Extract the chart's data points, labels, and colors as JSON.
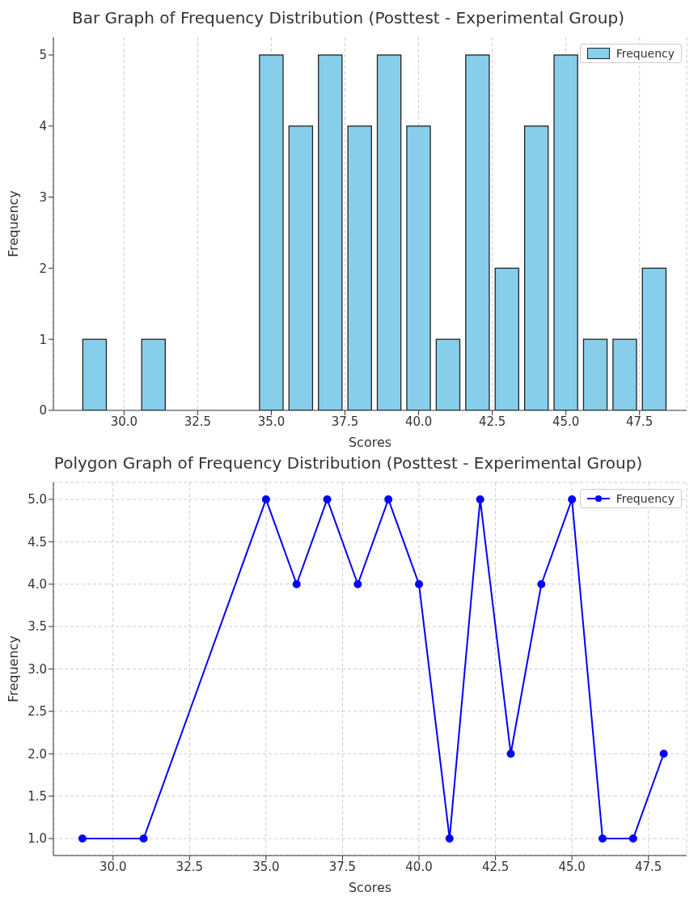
{
  "chart_data": [
    {
      "type": "bar",
      "title": "Bar Graph of Frequency Distribution (Posttest - Experimental Group)",
      "xlabel": "Scores",
      "ylabel": "Frequency",
      "x": [
        29,
        31,
        35,
        36,
        37,
        38,
        39,
        40,
        41,
        42,
        43,
        44,
        45,
        46,
        47,
        48
      ],
      "series": [
        {
          "name": "Frequency",
          "color": "#87ceeb",
          "values": [
            1,
            1,
            5,
            4,
            5,
            4,
            5,
            4,
            1,
            5,
            2,
            4,
            5,
            1,
            1,
            2
          ]
        }
      ],
      "xlim": [
        27.6,
        49.1
      ],
      "xticks": [
        {
          "value": 30,
          "label": "30.0"
        },
        {
          "value": 32.5,
          "label": "32.5"
        },
        {
          "value": 35,
          "label": "35.0"
        },
        {
          "value": 37.5,
          "label": "37.5"
        },
        {
          "value": 40,
          "label": "40.0"
        },
        {
          "value": 42.5,
          "label": "42.5"
        },
        {
          "value": 45,
          "label": "45.0"
        },
        {
          "value": 47.5,
          "label": "47.5"
        }
      ],
      "ylim": [
        0,
        5.25
      ],
      "yticks": [
        0,
        1,
        2,
        3,
        4,
        5
      ],
      "grid": "x",
      "legend": "top right"
    },
    {
      "type": "line",
      "title": "Polygon Graph of Frequency Distribution (Posttest - Experimental Group)",
      "xlabel": "Scores",
      "ylabel": "Frequency",
      "x": [
        29,
        31,
        35,
        36,
        37,
        38,
        39,
        40,
        41,
        42,
        43,
        44,
        45,
        46,
        47,
        48
      ],
      "series": [
        {
          "name": "Frequency",
          "color": "#0000ff",
          "values": [
            1,
            1,
            5,
            4,
            5,
            4,
            5,
            4,
            1,
            5,
            2,
            4,
            5,
            1,
            1,
            2
          ]
        }
      ],
      "xlim": [
        28.05,
        48.75
      ],
      "xticks": [
        {
          "value": 30,
          "label": "30.0"
        },
        {
          "value": 32.5,
          "label": "32.5"
        },
        {
          "value": 35,
          "label": "35.0"
        },
        {
          "value": 37.5,
          "label": "37.5"
        },
        {
          "value": 40,
          "label": "40.0"
        },
        {
          "value": 42.5,
          "label": "42.5"
        },
        {
          "value": 45,
          "label": "45.0"
        },
        {
          "value": 47.5,
          "label": "47.5"
        }
      ],
      "ylim": [
        0.8,
        5.2
      ],
      "yticks": [
        {
          "value": 1,
          "label": "1.0"
        },
        {
          "value": 1.5,
          "label": "1.5"
        },
        {
          "value": 2,
          "label": "2.0"
        },
        {
          "value": 2.5,
          "label": "2.5"
        },
        {
          "value": 3,
          "label": "3.0"
        },
        {
          "value": 3.5,
          "label": "3.5"
        },
        {
          "value": 4,
          "label": "4.0"
        },
        {
          "value": 4.5,
          "label": "4.5"
        },
        {
          "value": 5,
          "label": "5.0"
        }
      ],
      "grid": true,
      "legend": "top right",
      "marker": "circle",
      "line_style": "solid"
    }
  ]
}
